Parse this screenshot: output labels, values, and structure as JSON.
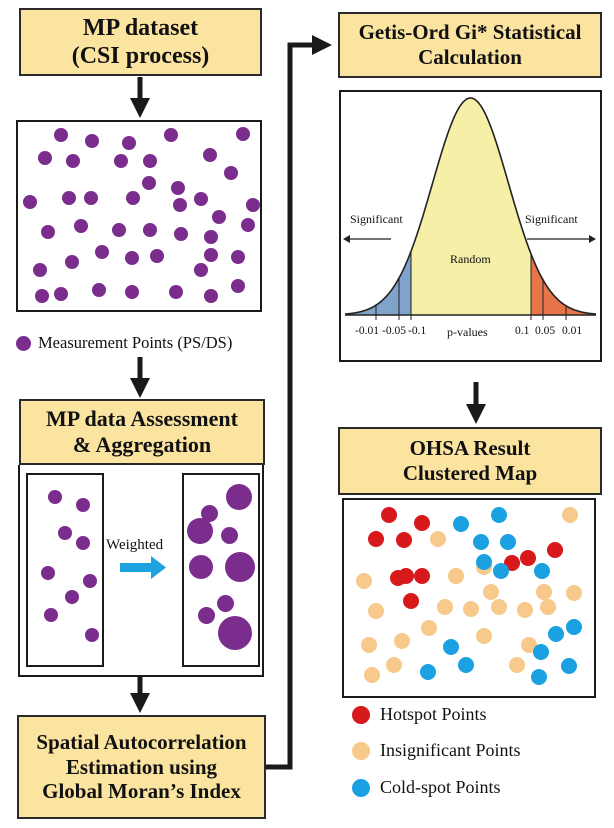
{
  "boxes": {
    "mp_dataset": "MP dataset\n(CSI process)",
    "assessment": "MP data Assessment\n& Aggregation",
    "spatial": "Spatial Autocorrelation\nEstimation using\nGlobal Moran’s Index",
    "getis": "Getis-Ord Gi* Statistical\nCalculation",
    "ohsa": "OHSA Result\nClustered Map"
  },
  "legend_mp": "Measurement Points (PS/DS)",
  "weighted_label": "Weighted",
  "bell": {
    "significant_left": "Significant",
    "significant_right": "Significant",
    "random": "Random",
    "p_values": "p-values",
    "ticks_left": [
      "-0.01",
      "-0.05",
      "-0.1"
    ],
    "ticks_right": [
      "0.1",
      "0.05",
      "0.01"
    ]
  },
  "legend_ohsa": {
    "hot": "Hotspot Points",
    "insig": "Insignificant Points",
    "cold": "Cold-spot Points"
  },
  "colors": {
    "box_fill": "#fbe3a0",
    "purple": "#7b2d8e",
    "hot": "#d7191c",
    "insig": "#f7c98b",
    "cold": "#1ba1e2",
    "arrow_blue": "#1ea3e0"
  }
}
